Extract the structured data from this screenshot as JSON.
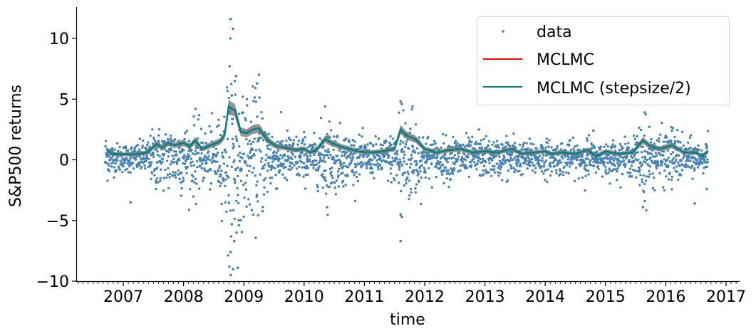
{
  "chart_data": {
    "type": "scatter",
    "title": "",
    "xlabel": "time",
    "ylabel": "S&P500 returns",
    "xlim": [
      2006.22,
      2017.22
    ],
    "ylim": [
      -10.15,
      12.4
    ],
    "xticks": [
      2007,
      2008,
      2009,
      2010,
      2011,
      2012,
      2013,
      2014,
      2015,
      2016,
      2017
    ],
    "xtick_labels": [
      "2007",
      "2008",
      "2009",
      "2010",
      "2011",
      "2012",
      "2013",
      "2014",
      "2015",
      "2016",
      "2017"
    ],
    "yticks": [
      10,
      5,
      0,
      -5,
      -10
    ],
    "ytick_labels": [
      "10",
      "5",
      "0",
      "−5",
      "−10"
    ],
    "x_minor_ticks_per_year": 12,
    "grid": false,
    "legend": {
      "position": "upper right",
      "entries": [
        {
          "label": "data",
          "marker": "dot",
          "color": "#4682b4"
        },
        {
          "label": "MCLMC",
          "marker": "line",
          "color": "#ff0000"
        },
        {
          "label": "MCLMC (stepsize/2)",
          "marker": "line",
          "color": "#008080"
        }
      ]
    },
    "series": [
      {
        "name": "data",
        "kind": "scatter",
        "color": "#4682b4",
        "description": "Daily S&P500 returns, ~2500 points from late 2006 to late 2016, mostly within ±3, heavy spread in 2008-2009 and 2011",
        "x_range": [
          2006.7,
          2016.7
        ],
        "n_points": 2520,
        "notable_points": [
          {
            "x": 2008.78,
            "y": 11.6
          },
          {
            "x": 2008.82,
            "y": 10.8
          },
          {
            "x": 2008.87,
            "y": 6.9
          },
          {
            "x": 2008.85,
            "y": 6.5
          },
          {
            "x": 2009.25,
            "y": 7.0
          },
          {
            "x": 2009.22,
            "y": 6.3
          },
          {
            "x": 2008.8,
            "y": 5.3
          },
          {
            "x": 2009.05,
            "y": 5.0
          },
          {
            "x": 2008.78,
            "y": -7.6
          },
          {
            "x": 2008.76,
            "y": -8.8
          },
          {
            "x": 2008.82,
            "y": -9.0
          },
          {
            "x": 2008.9,
            "y": -8.9
          },
          {
            "x": 2008.84,
            "y": -6.7
          },
          {
            "x": 2008.88,
            "y": -6.0
          },
          {
            "x": 2008.8,
            "y": -5.3
          },
          {
            "x": 2008.92,
            "y": -5.4
          },
          {
            "x": 2011.6,
            "y": 4.8
          },
          {
            "x": 2011.62,
            "y": 4.6
          },
          {
            "x": 2011.6,
            "y": -4.5
          },
          {
            "x": 2011.62,
            "y": -4.7
          },
          {
            "x": 2011.6,
            "y": -6.7
          },
          {
            "x": 2011.8,
            "y": 4.4
          },
          {
            "x": 2010.35,
            "y": 4.4
          },
          {
            "x": 2010.38,
            "y": -3.9
          },
          {
            "x": 2007.12,
            "y": -3.5
          },
          {
            "x": 2008.2,
            "y": 4.2
          },
          {
            "x": 2012.9,
            "y": 2.5
          },
          {
            "x": 2015.65,
            "y": 3.9
          },
          {
            "x": 2015.62,
            "y": -3.9
          },
          {
            "x": 2015.65,
            "y": -3.4
          },
          {
            "x": 2016.48,
            "y": -3.6
          },
          {
            "x": 2016.68,
            "y": -2.4
          },
          {
            "x": 2014.8,
            "y": 2.4
          },
          {
            "x": 2016.1,
            "y": 2.4
          }
        ]
      },
      {
        "name": "MCLMC",
        "kind": "line",
        "color": "#ff0000",
        "band_color": "#808080",
        "x": [
          2006.72,
          2006.8,
          2007.0,
          2007.2,
          2007.4,
          2007.55,
          2007.65,
          2007.75,
          2007.85,
          2008.0,
          2008.1,
          2008.2,
          2008.3,
          2008.4,
          2008.5,
          2008.6,
          2008.68,
          2008.75,
          2008.8,
          2008.85,
          2008.95,
          2009.05,
          2009.15,
          2009.25,
          2009.35,
          2009.45,
          2009.55,
          2009.7,
          2009.85,
          2010.0,
          2010.1,
          2010.2,
          2010.35,
          2010.45,
          2010.6,
          2010.75,
          2010.9,
          2011.1,
          2011.3,
          2011.5,
          2011.6,
          2011.7,
          2011.85,
          2012.0,
          2012.2,
          2012.4,
          2012.6,
          2012.8,
          2013.0,
          2013.2,
          2013.45,
          2013.6,
          2013.8,
          2014.0,
          2014.1,
          2014.3,
          2014.5,
          2014.7,
          2014.85,
          2015.0,
          2015.2,
          2015.45,
          2015.62,
          2015.75,
          2015.9,
          2016.1,
          2016.3,
          2016.5,
          2016.6,
          2016.7
        ],
        "y": [
          0.9,
          0.5,
          0.45,
          0.45,
          0.6,
          1.3,
          1.0,
          1.4,
          1.2,
          1.4,
          1.1,
          1.6,
          0.9,
          1.1,
          1.3,
          1.5,
          2.0,
          4.4,
          4.2,
          4.1,
          2.3,
          2.2,
          2.5,
          2.6,
          1.9,
          1.4,
          1.1,
          1.0,
          0.8,
          0.9,
          0.6,
          0.8,
          1.7,
          1.4,
          1.1,
          0.9,
          0.7,
          0.6,
          0.7,
          0.9,
          2.5,
          2.0,
          1.7,
          0.9,
          0.6,
          0.8,
          0.9,
          0.6,
          0.7,
          0.6,
          0.9,
          0.5,
          0.6,
          0.7,
          0.5,
          0.6,
          0.5,
          0.8,
          0.3,
          0.7,
          0.5,
          0.6,
          1.6,
          1.1,
          0.9,
          1.2,
          0.6,
          0.6,
          0.3,
          0.7
        ]
      },
      {
        "name": "MCLMC (stepsize/2)",
        "kind": "line",
        "color": "#008080",
        "same_as": "MCLMC"
      }
    ]
  }
}
